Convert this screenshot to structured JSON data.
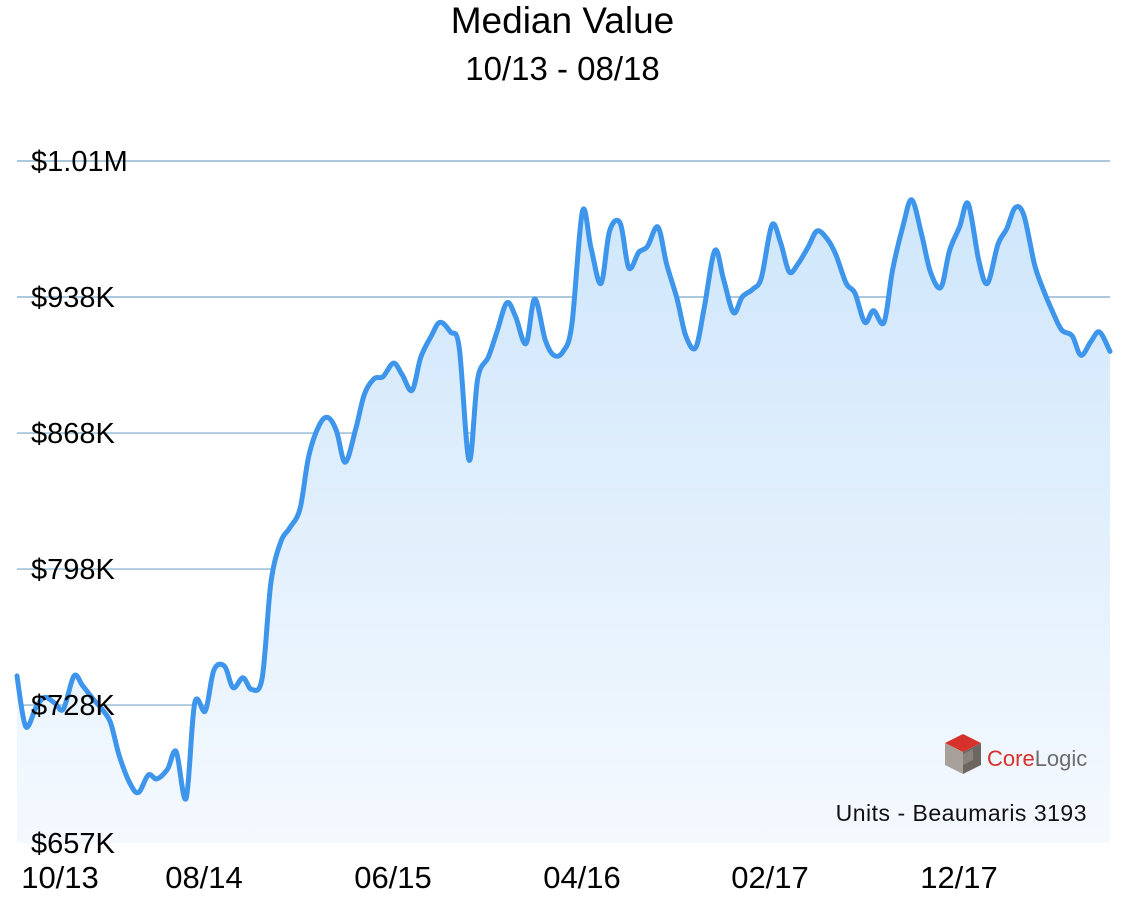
{
  "header": {
    "title": "Median Value",
    "subtitle": "10/13 - 08/18"
  },
  "source_note": "Units - Beaumaris 3193",
  "logo": {
    "name_part1": "Core",
    "name_part2": "Logic",
    "mark": "TM"
  },
  "colors": {
    "line": "#3d95ec",
    "fill_top": "#cfe6fb",
    "fill_bottom": "#f4f9fe",
    "grid": "#8fb6d2",
    "logo_red": "#d6322b"
  },
  "chart_data": {
    "type": "area",
    "title": "Median Value",
    "subtitle": "10/13 - 08/18",
    "xlabel": "",
    "ylabel": "",
    "y_ticks": [
      {
        "value": 1008000,
        "label": "$1.01M"
      },
      {
        "value": 938000,
        "label": "$938K"
      },
      {
        "value": 868000,
        "label": "$868K"
      },
      {
        "value": 798000,
        "label": "$798K"
      },
      {
        "value": 728000,
        "label": "$728K"
      },
      {
        "value": 657000,
        "label": "$657K"
      }
    ],
    "x_ticks": [
      "10/13",
      "08/14",
      "06/15",
      "04/16",
      "02/17",
      "12/17"
    ],
    "ylim": [
      657000,
      1008000
    ],
    "grid": true,
    "series": [
      {
        "x": [
          "2013-10-01",
          "2013-10-15",
          "2013-11-01",
          "2013-11-15",
          "2013-12-01",
          "2013-12-15",
          "2014-01-01",
          "2014-01-15",
          "2014-02-01",
          "2014-02-15",
          "2014-03-01",
          "2014-03-15",
          "2014-04-01",
          "2014-04-15",
          "2014-05-01",
          "2014-05-15",
          "2014-06-01",
          "2014-06-15",
          "2014-07-01",
          "2014-07-15",
          "2014-08-01",
          "2014-08-15",
          "2014-09-01",
          "2014-09-15",
          "2014-10-01",
          "2014-10-15",
          "2014-11-01",
          "2014-11-15",
          "2014-12-01",
          "2014-12-15",
          "2015-01-01",
          "2015-01-15",
          "2015-02-01",
          "2015-02-15",
          "2015-03-01",
          "2015-03-15",
          "2015-04-01",
          "2015-04-15",
          "2015-05-01",
          "2015-05-15",
          "2015-06-01",
          "2015-06-15",
          "2015-07-01",
          "2015-07-15",
          "2015-08-01",
          "2015-08-15",
          "2015-09-01",
          "2015-09-15",
          "2015-10-01",
          "2015-10-15",
          "2015-11-01",
          "2015-11-15",
          "2015-12-01",
          "2015-12-15",
          "2016-01-01",
          "2016-01-15",
          "2016-02-01",
          "2016-02-15",
          "2016-03-01",
          "2016-03-15",
          "2016-04-01",
          "2016-04-15",
          "2016-05-01",
          "2016-05-15",
          "2016-06-01",
          "2016-06-15",
          "2016-07-01",
          "2016-07-15",
          "2016-08-01",
          "2016-08-15",
          "2016-09-01",
          "2016-09-15",
          "2016-10-01",
          "2016-10-15",
          "2016-11-01",
          "2016-11-15",
          "2016-12-01",
          "2016-12-15",
          "2017-01-01",
          "2017-01-15",
          "2017-02-01",
          "2017-02-15",
          "2017-03-01",
          "2017-03-15",
          "2017-04-01",
          "2017-04-15",
          "2017-05-01",
          "2017-05-15",
          "2017-06-01",
          "2017-06-15",
          "2017-07-01",
          "2017-07-15",
          "2017-08-01",
          "2017-08-15",
          "2017-09-01",
          "2017-09-15",
          "2017-10-01",
          "2017-10-15",
          "2017-11-01",
          "2017-11-15",
          "2017-12-01",
          "2017-12-15",
          "2018-01-01",
          "2018-01-15",
          "2018-02-01",
          "2018-02-15",
          "2018-03-01",
          "2018-03-15",
          "2018-04-01",
          "2018-04-15",
          "2018-05-01",
          "2018-05-15",
          "2018-06-01",
          "2018-06-15",
          "2018-07-01",
          "2018-07-15",
          "2018-08-01"
        ],
        "values": [
          743000,
          717000,
          727000,
          732000,
          729000,
          726000,
          743000,
          738000,
          731000,
          726000,
          719000,
          702000,
          688000,
          683000,
          692000,
          690000,
          695000,
          704000,
          680000,
          729000,
          725000,
          746000,
          748000,
          737000,
          742000,
          736000,
          742000,
          791000,
          812000,
          819000,
          829000,
          856000,
          872000,
          876000,
          869000,
          853000,
          870000,
          888000,
          896000,
          897000,
          904000,
          898000,
          890000,
          907000,
          918000,
          925000,
          920000,
          912000,
          854000,
          896000,
          907000,
          920000,
          935000,
          928000,
          914000,
          937000,
          916000,
          908000,
          910000,
          924000,
          982000,
          963000,
          945000,
          972000,
          976000,
          953000,
          961000,
          964000,
          974000,
          955000,
          937000,
          918000,
          912000,
          933000,
          962000,
          947000,
          930000,
          938000,
          942000,
          948000,
          975000,
          966000,
          951000,
          955000,
          964000,
          972000,
          968000,
          960000,
          945000,
          940000,
          925000,
          931000,
          925000,
          952000,
          975000,
          988000,
          970000,
          951000,
          943000,
          962000,
          974000,
          986000,
          957000,
          945000,
          965000,
          973000,
          984000,
          980000,
          955000,
          942000,
          930000,
          921000,
          918000,
          908000,
          915000,
          920000,
          910000
        ]
      }
    ]
  }
}
